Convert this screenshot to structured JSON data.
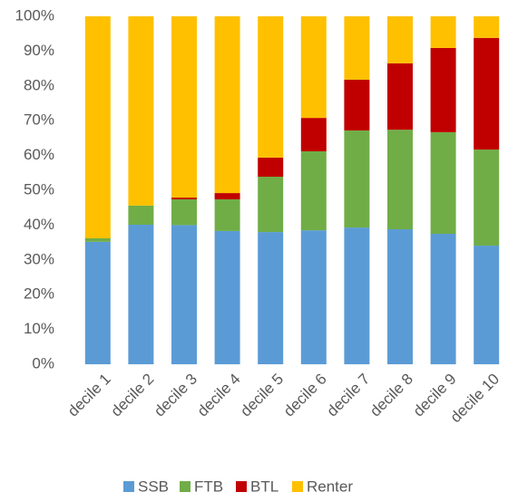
{
  "chart_data": {
    "type": "stacked_bar",
    "categories": [
      "decile 1",
      "decile 2",
      "decile 3",
      "decile 4",
      "decile 5",
      "decile 6",
      "decile 7",
      "decile 8",
      "decile 9",
      "decile 10"
    ],
    "series": [
      {
        "name": "SSB",
        "color": "#5b9bd5",
        "values": [
          35.2,
          40.1,
          40,
          38.3,
          38,
          38.5,
          39.3,
          38.8,
          37.5,
          34.1
        ]
      },
      {
        "name": "FTB",
        "color": "#70ad47",
        "values": [
          1,
          5.5,
          7.4,
          9.1,
          15.9,
          22.7,
          27.9,
          28.6,
          29.2,
          27.6
        ]
      },
      {
        "name": "BTL",
        "color": "#c00000",
        "values": [
          0,
          0,
          0.5,
          1.8,
          5.5,
          9.6,
          14.6,
          19.1,
          24.2,
          32.1
        ]
      },
      {
        "name": "Renter",
        "color": "#ffc000",
        "values": [
          63.8,
          54.4,
          52.1,
          50.8,
          40.6,
          29.2,
          18.2,
          13.5,
          9.1,
          6.2
        ]
      }
    ],
    "ylim": [
      0,
      100
    ],
    "yticks": [
      {
        "value": 0,
        "label": "0%"
      },
      {
        "value": 10,
        "label": "10%"
      },
      {
        "value": 20,
        "label": "20%"
      },
      {
        "value": 30,
        "label": "30%"
      },
      {
        "value": 40,
        "label": "40%"
      },
      {
        "value": 50,
        "label": "50%"
      },
      {
        "value": 60,
        "label": "60%"
      },
      {
        "value": 70,
        "label": "70%"
      },
      {
        "value": 80,
        "label": "80%"
      },
      {
        "value": 90,
        "label": "90%"
      },
      {
        "value": 100,
        "label": "100%"
      }
    ],
    "grid": false,
    "legend": "bottom"
  }
}
